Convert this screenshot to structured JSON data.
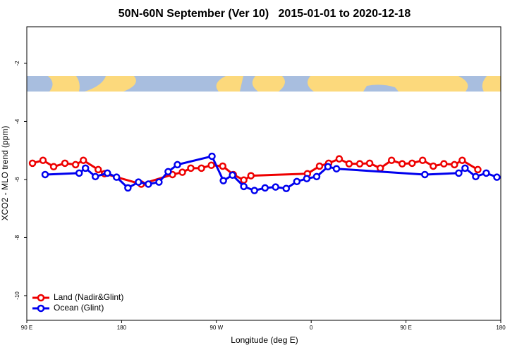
{
  "chart_data": {
    "type": "line",
    "title": "50N-60N September (Ver 10)   2015-01-01 to 2020-12-18",
    "x_label": "Longitude (deg E)",
    "y_label": "XCO2 - MLO trend (ppm)",
    "xlim": [
      90,
      540
    ],
    "xticks": [
      {
        "value": 90,
        "label": "90 E"
      },
      180,
      {
        "value": 270,
        "label": "90 W"
      },
      {
        "value": 360,
        "label": "0"
      },
      {
        "value": 450,
        "label": "90 E"
      },
      {
        "value": 540,
        "label": "180"
      }
    ],
    "ylim": [
      -10.85,
      -0.74
    ],
    "yticks": [
      -2,
      -4,
      -6,
      -8,
      -10
    ],
    "legend": "bottom-left",
    "series": [
      {
        "name": "Land (Nadir&Glint)",
        "color": "#ee0000",
        "x": [
          95.4,
          105.4,
          115.5,
          126.2,
          136.3,
          143.7,
          157.8,
          163.8,
          198.7,
          228.3,
          237.7,
          245.7,
          255.8,
          265.2,
          276,
          286,
          296,
          302.8,
          356.4,
          367.9,
          376.6,
          386.6,
          396,
          406.1,
          415.5,
          425.6,
          436.3,
          446.4,
          455.8,
          465.8,
          475.9,
          486,
          496,
          503.4,
          518.2
        ],
        "values": [
          -5.44,
          -5.34,
          -5.56,
          -5.44,
          -5.49,
          -5.34,
          -5.66,
          -5.8,
          -6.16,
          -5.83,
          -5.75,
          -5.61,
          -5.61,
          -5.51,
          -5.54,
          -5.83,
          -6.02,
          -5.87,
          -5.8,
          -5.54,
          -5.44,
          -5.29,
          -5.46,
          -5.46,
          -5.44,
          -5.61,
          -5.34,
          -5.46,
          -5.44,
          -5.34,
          -5.54,
          -5.46,
          -5.49,
          -5.34,
          -5.66
        ]
      },
      {
        "name": "Ocean (Glint)",
        "color": "#0000ee",
        "x": [
          107.4,
          139.7,
          145.7,
          155.1,
          166.5,
          175.2,
          186,
          196,
          205.4,
          215.5,
          224.2,
          233,
          265.8,
          276.6,
          285.3,
          296,
          306.1,
          316.2,
          326.2,
          336.3,
          346.4,
          355.8,
          365.2,
          375.9,
          384,
          467.9,
          500.1,
          506.1,
          516.2,
          526.2,
          536.3
        ],
        "values": [
          -5.83,
          -5.78,
          -5.61,
          -5.9,
          -5.78,
          -5.92,
          -6.29,
          -6.09,
          -6.16,
          -6.09,
          -5.73,
          -5.49,
          -5.2,
          -6.04,
          -5.85,
          -6.24,
          -6.38,
          -6.29,
          -6.26,
          -6.31,
          -6.07,
          -5.97,
          -5.9,
          -5.56,
          -5.63,
          -5.83,
          -5.78,
          -5.61,
          -5.9,
          -5.78,
          -5.92
        ]
      }
    ]
  }
}
